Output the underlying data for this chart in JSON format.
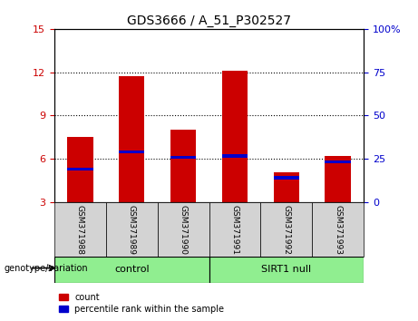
{
  "title": "GDS3666 / A_51_P302527",
  "samples": [
    "GSM371988",
    "GSM371989",
    "GSM371990",
    "GSM371991",
    "GSM371992",
    "GSM371993"
  ],
  "red_values": [
    7.5,
    11.7,
    8.0,
    12.1,
    5.1,
    6.2
  ],
  "blue_values": [
    5.3,
    6.5,
    6.1,
    6.2,
    4.7,
    5.8
  ],
  "ylim_left": [
    3,
    15
  ],
  "ylim_right": [
    0,
    100
  ],
  "yticks_left": [
    3,
    6,
    9,
    12,
    15
  ],
  "yticks_right": [
    0,
    25,
    50,
    75,
    100
  ],
  "ytick_labels_right": [
    "0",
    "25",
    "50",
    "75",
    "100%"
  ],
  "groups": [
    {
      "label": "control",
      "start": 0,
      "end": 3,
      "color": "#90EE90"
    },
    {
      "label": "SIRT1 null",
      "start": 3,
      "end": 6,
      "color": "#90EE90"
    }
  ],
  "bar_color": "#CC0000",
  "blue_color": "#0000CC",
  "left_tick_color": "#CC0000",
  "right_tick_color": "#0000CC",
  "bar_width": 0.5,
  "label_box_color": "#d3d3d3",
  "grid_color": "black",
  "legend_count_label": "count",
  "legend_pct_label": "percentile rank within the sample",
  "genotype_label": "genotype/variation",
  "grid_lines": [
    6,
    9,
    12
  ]
}
